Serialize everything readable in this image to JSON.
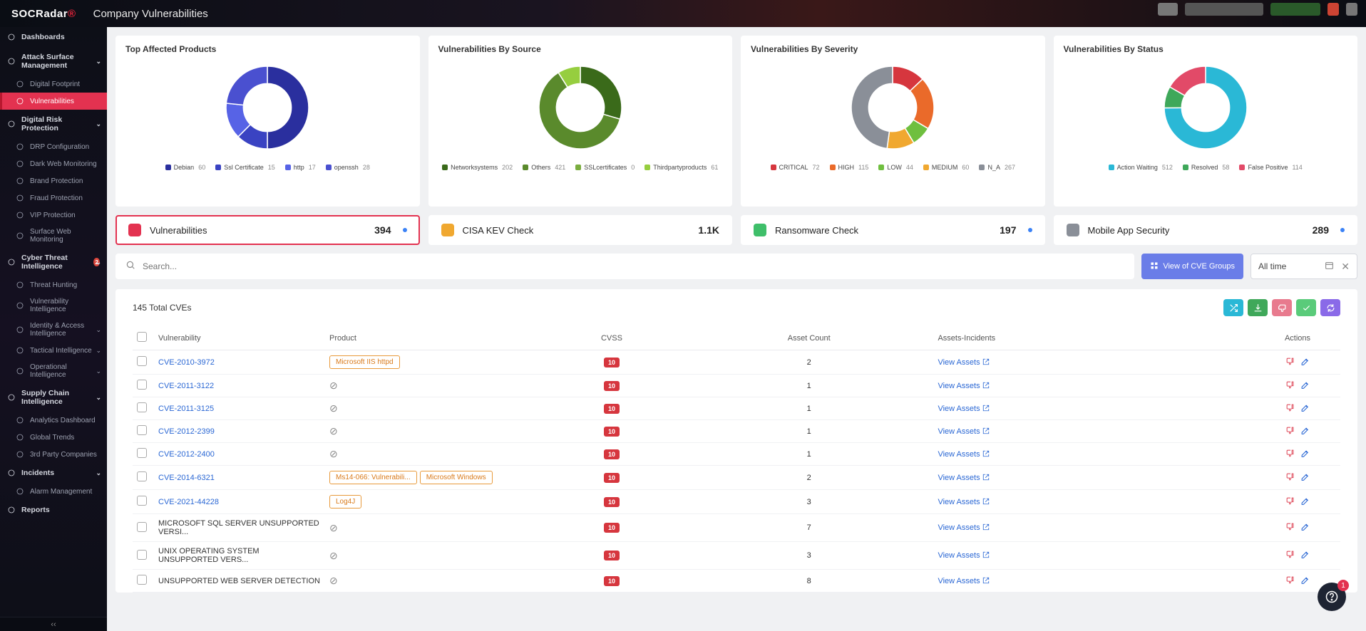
{
  "brand": {
    "name": "SOCRadar"
  },
  "header": {
    "title": "Company Vulnerabilities"
  },
  "sidebar": {
    "items": [
      {
        "label": "Dashboards",
        "type": "section",
        "chev": false
      },
      {
        "label": "Attack Surface Management",
        "type": "section",
        "chev": true
      },
      {
        "label": "Digital Footprint",
        "type": "sub"
      },
      {
        "label": "Vulnerabilities",
        "type": "sub",
        "active": true
      },
      {
        "label": "Digital Risk Protection",
        "type": "section",
        "chev": true
      },
      {
        "label": "DRP Configuration",
        "type": "sub"
      },
      {
        "label": "Dark Web Monitoring",
        "type": "sub"
      },
      {
        "label": "Brand Protection",
        "type": "sub"
      },
      {
        "label": "Fraud Protection",
        "type": "sub"
      },
      {
        "label": "VIP Protection",
        "type": "sub"
      },
      {
        "label": "Surface Web Monitoring",
        "type": "sub"
      },
      {
        "label": "Cyber Threat Intelligence",
        "type": "section",
        "chev": true,
        "badge": "2"
      },
      {
        "label": "Threat Hunting",
        "type": "sub"
      },
      {
        "label": "Vulnerability Intelligence",
        "type": "sub"
      },
      {
        "label": "Identity & Access Intelligence",
        "type": "sub",
        "chev": true
      },
      {
        "label": "Tactical Intelligence",
        "type": "sub",
        "chev": true
      },
      {
        "label": "Operational Intelligence",
        "type": "sub",
        "chev": true
      },
      {
        "label": "Supply Chain Intelligence",
        "type": "section",
        "chev": true
      },
      {
        "label": "Analytics Dashboard",
        "type": "sub"
      },
      {
        "label": "Global Trends",
        "type": "sub"
      },
      {
        "label": "3rd Party Companies",
        "type": "sub"
      },
      {
        "label": "Incidents",
        "type": "section",
        "chev": true
      },
      {
        "label": "Alarm Management",
        "type": "sub"
      },
      {
        "label": "Reports",
        "type": "section"
      }
    ]
  },
  "charts": {
    "products": {
      "title": "Top Affected Products",
      "type": "donut",
      "colors": [
        "#2a2f9e",
        "#3a43c2",
        "#5763e6",
        "#4a50d0"
      ],
      "series": [
        {
          "label": "Debian",
          "value": 60,
          "color": "#2a2f9e"
        },
        {
          "label": "Ssl Certificate",
          "value": 15,
          "color": "#3a43c2"
        },
        {
          "label": "http",
          "value": 17,
          "color": "#5763e6"
        },
        {
          "label": "openssh",
          "value": 28,
          "color": "#4a50d0"
        }
      ],
      "inner_radius": 0.58,
      "background": "#ffffff"
    },
    "source": {
      "title": "Vulnerabilities By Source",
      "type": "donut",
      "series": [
        {
          "label": "Networksystems",
          "value": 202,
          "color": "#3a6a1a"
        },
        {
          "label": "Others",
          "value": 421,
          "color": "#5a8a2c"
        },
        {
          "label": "SSLcertificates",
          "value": 0,
          "color": "#7aad3f"
        },
        {
          "label": "Thirdpartyproducts",
          "value": 61,
          "color": "#96ce3f"
        }
      ],
      "inner_radius": 0.58
    },
    "severity": {
      "title": "Vulnerabilities By Severity",
      "type": "donut",
      "series": [
        {
          "label": "CRITICAL",
          "value": 72,
          "color": "#d6363e"
        },
        {
          "label": "HIGH",
          "value": 115,
          "color": "#ea6a2a"
        },
        {
          "label": "LOW",
          "value": 44,
          "color": "#6fbf3f"
        },
        {
          "label": "MEDIUM",
          "value": 60,
          "color": "#f0a830"
        },
        {
          "label": "N_A",
          "value": 267,
          "color": "#8a8f98"
        }
      ],
      "inner_radius": 0.58
    },
    "status": {
      "title": "Vulnerabilities By Status",
      "type": "donut",
      "series": [
        {
          "label": "Action Waiting",
          "value": 512,
          "color": "#2ab8d6"
        },
        {
          "label": "Resolved",
          "value": 58,
          "color": "#3fa85a"
        },
        {
          "label": "False Positive",
          "value": 114,
          "color": "#e24a68"
        }
      ],
      "inner_radius": 0.58
    }
  },
  "tabs": [
    {
      "label": "Vulnerabilities",
      "count": "394",
      "color": "#e33250",
      "active": true,
      "dot": true
    },
    {
      "label": "CISA KEV Check",
      "count": "1.1K",
      "color": "#f0a830",
      "dot": false
    },
    {
      "label": "Ransomware Check",
      "count": "197",
      "color": "#3fbf6a",
      "dot": true
    },
    {
      "label": "Mobile App Security",
      "count": "289",
      "color": "#8a8f98",
      "dot": true
    }
  ],
  "search": {
    "placeholder": "Search..."
  },
  "groups_btn": "View of CVE Groups",
  "time_filter": "All time",
  "table": {
    "total_label": "145 Total CVEs",
    "columns": [
      "Vulnerability",
      "Product",
      "CVSS",
      "Asset Count",
      "Assets-Incidents",
      "Actions"
    ],
    "view_assets_label": "View Assets",
    "action_buttons": [
      {
        "name": "shuffle",
        "color": "#2ab8d6"
      },
      {
        "name": "download",
        "color": "#3fa85a"
      },
      {
        "name": "thumbs-down",
        "color": "#e87a8e"
      },
      {
        "name": "check",
        "color": "#5acb7a"
      },
      {
        "name": "refresh",
        "color": "#8a6ae8"
      }
    ],
    "rows": [
      {
        "cve": "CVE-2010-3972",
        "link": true,
        "products": [
          "Microsoft IIS httpd"
        ],
        "cvss": "10",
        "assets": "2"
      },
      {
        "cve": "CVE-2011-3122",
        "link": true,
        "products": [],
        "cvss": "10",
        "assets": "1"
      },
      {
        "cve": "CVE-2011-3125",
        "link": true,
        "products": [],
        "cvss": "10",
        "assets": "1"
      },
      {
        "cve": "CVE-2012-2399",
        "link": true,
        "products": [],
        "cvss": "10",
        "assets": "1"
      },
      {
        "cve": "CVE-2012-2400",
        "link": true,
        "products": [],
        "cvss": "10",
        "assets": "1"
      },
      {
        "cve": "CVE-2014-6321",
        "link": true,
        "products": [
          "Ms14-066: Vulnerabili...",
          "Microsoft Windows"
        ],
        "cvss": "10",
        "assets": "2"
      },
      {
        "cve": "CVE-2021-44228",
        "link": true,
        "products": [
          "Log4J"
        ],
        "cvss": "10",
        "assets": "3"
      },
      {
        "cve": "MICROSOFT SQL SERVER UNSUPPORTED VERSI...",
        "link": false,
        "products": [],
        "cvss": "10",
        "assets": "7"
      },
      {
        "cve": "UNIX OPERATING SYSTEM UNSUPPORTED VERS...",
        "link": false,
        "products": [],
        "cvss": "10",
        "assets": "3"
      },
      {
        "cve": "UNSUPPORTED WEB SERVER DETECTION",
        "link": false,
        "products": [],
        "cvss": "10",
        "assets": "8"
      }
    ]
  },
  "help_badge": "1"
}
